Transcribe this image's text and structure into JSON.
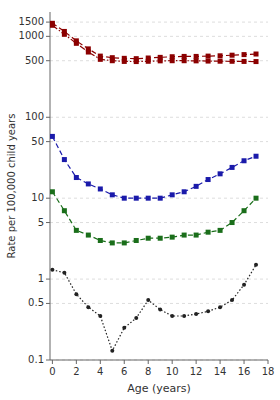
{
  "chart_data": {
    "type": "line",
    "xlabel": "Age (years)",
    "ylabel": "Rate per 100,000 child years",
    "x": [
      0,
      1,
      2,
      3,
      4,
      5,
      6,
      7,
      8,
      9,
      10,
      11,
      12,
      13,
      14,
      15,
      16,
      17
    ],
    "series": [
      {
        "color": "#8B0000",
        "marker": "square",
        "line_style": "dashed",
        "values": [
          1450,
          1150,
          880,
          700,
          570,
          545,
          535,
          530,
          540,
          550,
          560,
          565,
          565,
          570,
          575,
          585,
          595,
          605
        ]
      },
      {
        "color": "#8B0000",
        "marker": "square",
        "line_style": "dashdot",
        "values": [
          1370,
          1060,
          820,
          640,
          520,
          500,
          490,
          488,
          492,
          498,
          500,
          500,
          498,
          495,
          493,
          492,
          490,
          488
        ]
      },
      {
        "color": "#1a1aaa",
        "marker": "square",
        "line_style": "dashed",
        "values": [
          58,
          30,
          18,
          15,
          13,
          11,
          10,
          10,
          10,
          10,
          11,
          12,
          14,
          17,
          20,
          24,
          29,
          33
        ]
      },
      {
        "color": "#1a6e1a",
        "marker": "square",
        "line_style": "dashed",
        "values": [
          12,
          7,
          4,
          3.5,
          3.0,
          2.8,
          2.8,
          3.0,
          3.2,
          3.2,
          3.3,
          3.5,
          3.5,
          3.8,
          4.0,
          5.0,
          7.0,
          10.0
        ]
      },
      {
        "color": "#222222",
        "marker": "dot",
        "line_style": "dotted",
        "values": [
          1.3,
          1.2,
          0.65,
          0.45,
          0.35,
          0.13,
          0.25,
          0.33,
          0.55,
          0.42,
          0.35,
          0.35,
          0.37,
          0.4,
          0.45,
          0.55,
          0.85,
          1.5
        ]
      }
    ],
    "xlim": [
      -0.2,
      18
    ],
    "ylim": [
      0.1,
      2000
    ],
    "xticks": [
      0,
      2,
      4,
      6,
      8,
      10,
      12,
      14,
      16,
      18
    ],
    "yticks": [
      0.1,
      0.5,
      1,
      5,
      10,
      50,
      100,
      500,
      1000,
      1500
    ],
    "log": "y",
    "grid": true
  }
}
